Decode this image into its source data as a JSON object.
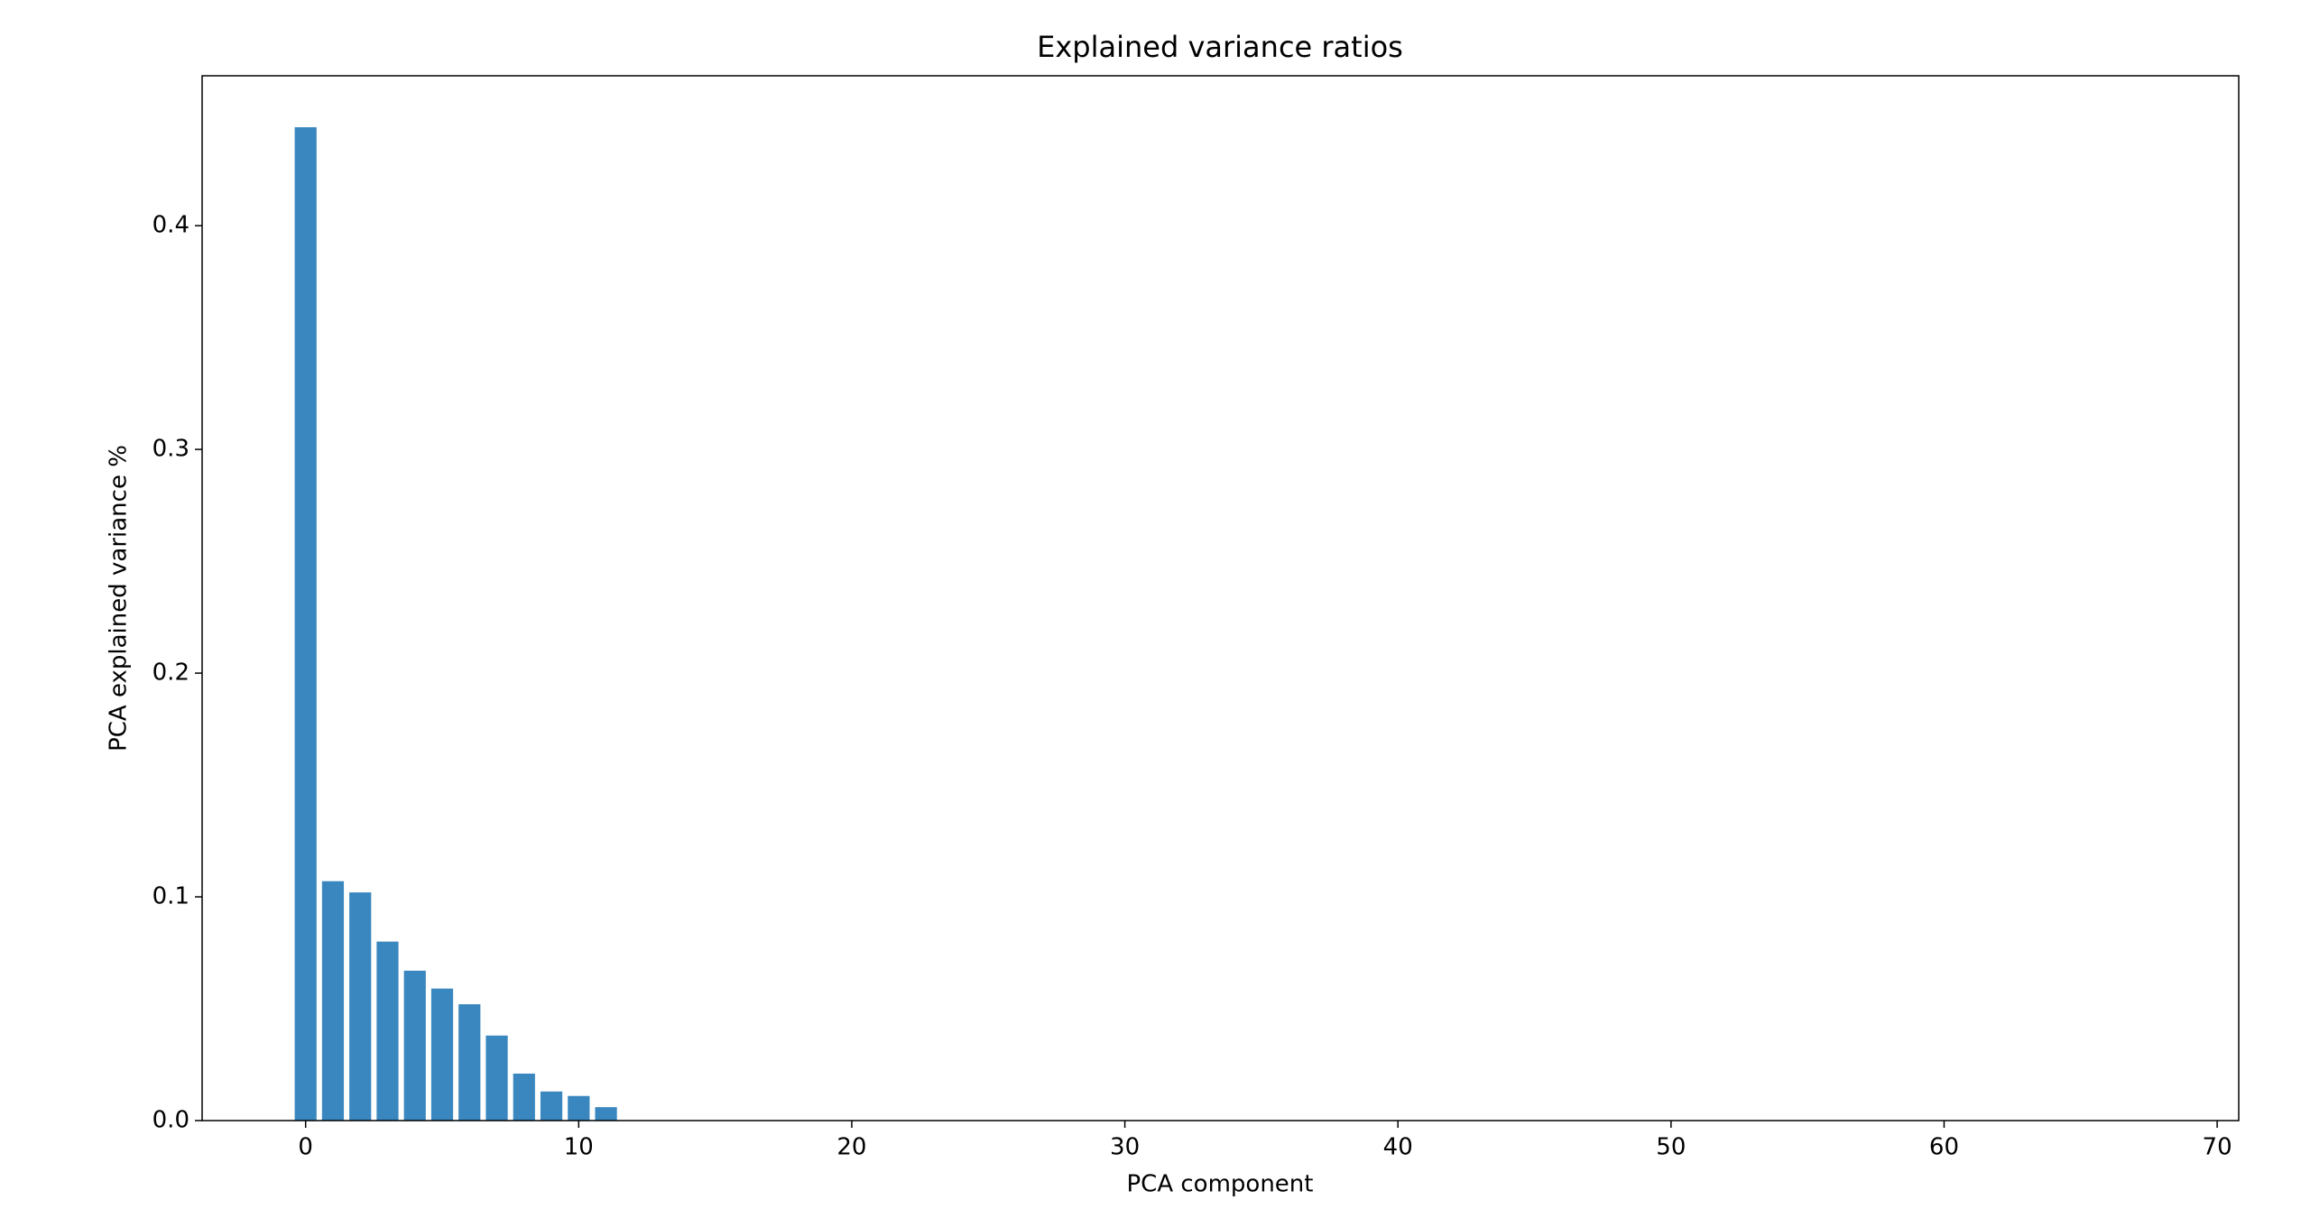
{
  "chart_data": {
    "type": "bar",
    "title": "Explained variance ratios",
    "x_label": "PCA component",
    "y_label": "PCA explained variance %",
    "x": [
      0,
      1,
      2,
      3,
      4,
      5,
      6,
      7,
      8,
      9,
      10,
      11,
      12,
      13,
      14,
      15,
      16,
      17,
      18,
      19,
      20,
      21,
      22,
      23,
      24,
      25,
      26,
      27,
      28,
      29,
      30,
      31,
      32,
      33,
      34,
      35,
      36,
      37,
      38,
      39,
      40,
      41,
      42,
      43,
      44,
      45,
      46,
      47,
      48,
      49,
      50,
      51,
      52,
      53,
      54,
      55,
      56,
      57,
      58,
      59,
      60,
      61,
      62,
      63,
      64,
      65,
      66,
      67
    ],
    "values": [
      0.444,
      0.107,
      0.102,
      0.08,
      0.067,
      0.059,
      0.052,
      0.038,
      0.021,
      0.013,
      0.011,
      0.006,
      0,
      0,
      0,
      0,
      0,
      0,
      0,
      0,
      0,
      0,
      0,
      0,
      0,
      0,
      0,
      0,
      0,
      0,
      0,
      0,
      0,
      0,
      0,
      0,
      0,
      0,
      0,
      0,
      0,
      0,
      0,
      0,
      0,
      0,
      0,
      0,
      0,
      0,
      0,
      0,
      0,
      0,
      0,
      0,
      0,
      0,
      0,
      0,
      0,
      0,
      0,
      0,
      0,
      0,
      0,
      0
    ],
    "color": "#3a87bf",
    "xlim": [
      -3.79,
      70.79
    ],
    "ylim": [
      0,
      0.467
    ],
    "xticks": [
      0,
      10,
      20,
      30,
      40,
      50,
      60,
      70
    ],
    "yticks": [
      {
        "value": 0,
        "label": "0.0"
      },
      0.1,
      0.2,
      0.3,
      0.4
    ],
    "grid": false
  }
}
